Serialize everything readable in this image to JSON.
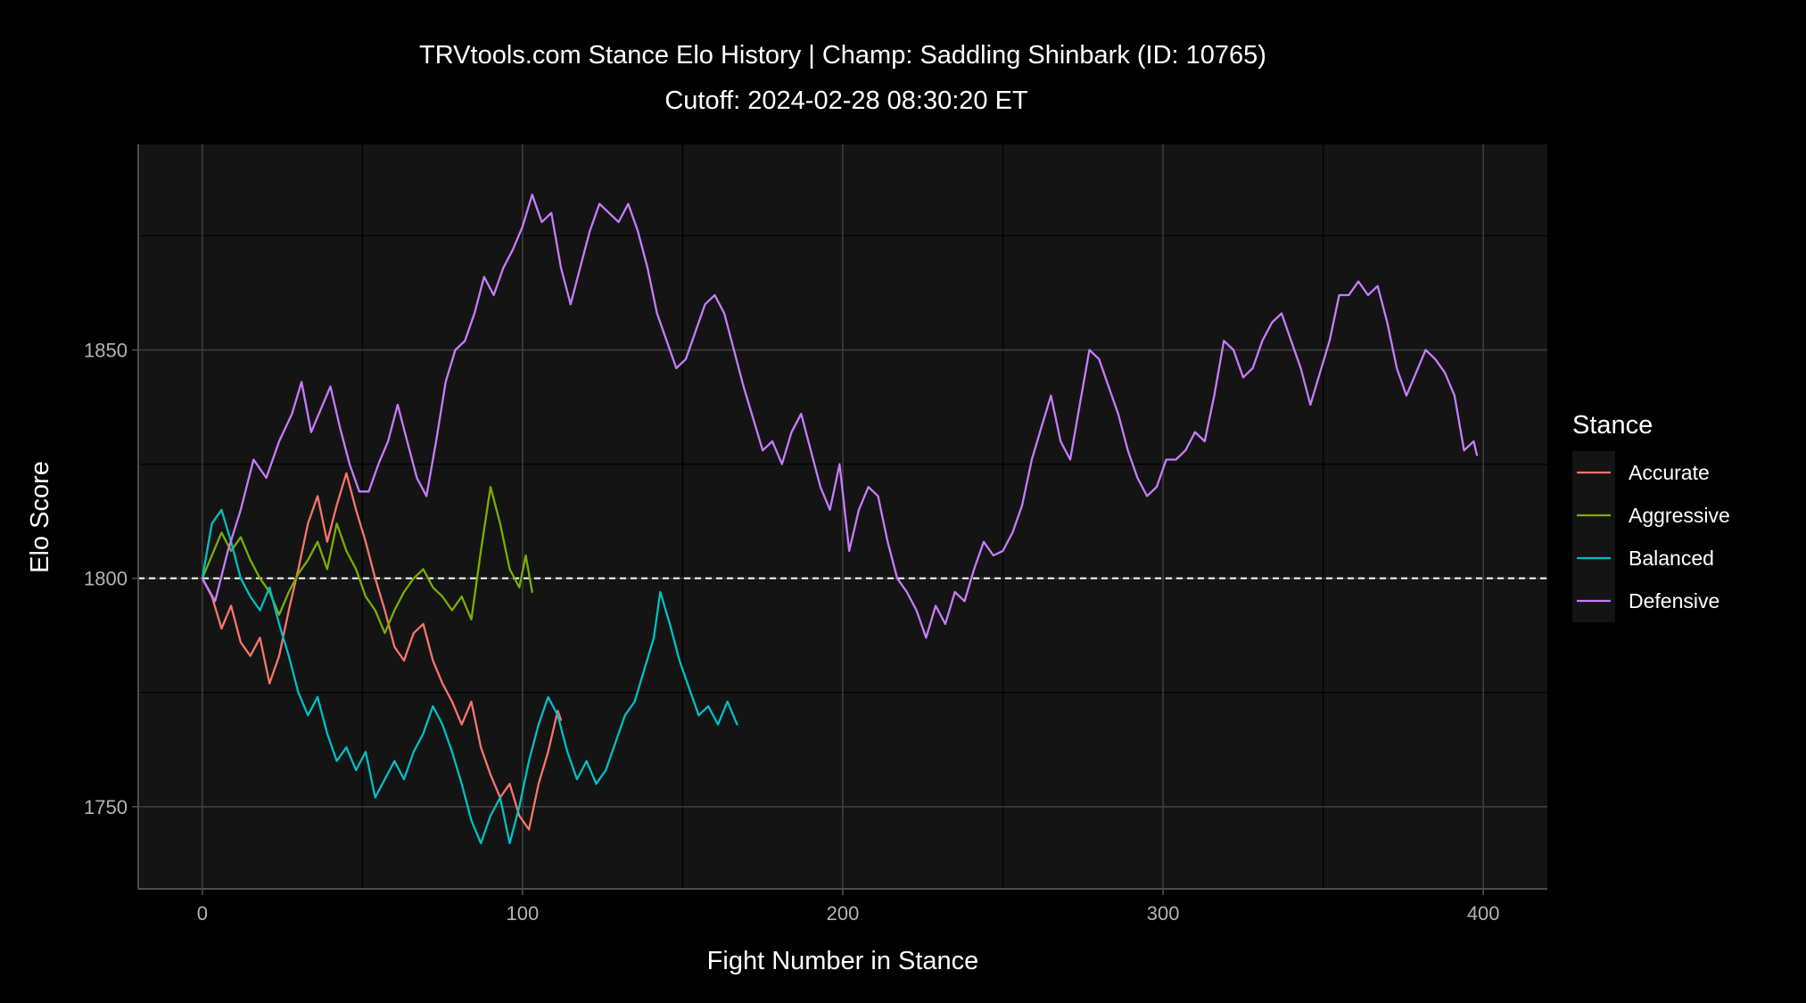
{
  "chart_data": {
    "type": "line",
    "title": "TRVtools.com Stance Elo History  |  Champ: Saddling Shinbark (ID: 10765)",
    "subtitle": "Cutoff: 2024-02-28 08:30:20 ET",
    "xlabel": "Fight Number in Stance",
    "ylabel": "Elo Score",
    "xlim": [
      -20,
      420
    ],
    "ylim": [
      1732,
      1895
    ],
    "x_ticks": [
      0,
      100,
      200,
      300,
      400
    ],
    "y_ticks": [
      1750,
      1800,
      1850
    ],
    "reference_line": {
      "y": 1800,
      "style": "dashed"
    },
    "grid": true,
    "legend": {
      "title": "Stance",
      "position": "right"
    },
    "series": [
      {
        "name": "Accurate",
        "color": "#F8766D",
        "points": [
          [
            0,
            1800
          ],
          [
            3,
            1796
          ],
          [
            6,
            1789
          ],
          [
            9,
            1794
          ],
          [
            12,
            1786
          ],
          [
            15,
            1783
          ],
          [
            18,
            1787
          ],
          [
            21,
            1777
          ],
          [
            24,
            1783
          ],
          [
            27,
            1793
          ],
          [
            30,
            1802
          ],
          [
            33,
            1812
          ],
          [
            36,
            1818
          ],
          [
            39,
            1808
          ],
          [
            42,
            1816
          ],
          [
            45,
            1823
          ],
          [
            48,
            1815
          ],
          [
            51,
            1808
          ],
          [
            54,
            1800
          ],
          [
            57,
            1793
          ],
          [
            60,
            1785
          ],
          [
            63,
            1782
          ],
          [
            66,
            1788
          ],
          [
            69,
            1790
          ],
          [
            72,
            1782
          ],
          [
            75,
            1777
          ],
          [
            78,
            1773
          ],
          [
            81,
            1768
          ],
          [
            84,
            1773
          ],
          [
            87,
            1763
          ],
          [
            90,
            1757
          ],
          [
            93,
            1752
          ],
          [
            96,
            1755
          ],
          [
            99,
            1748
          ],
          [
            102,
            1745
          ],
          [
            105,
            1755
          ],
          [
            108,
            1762
          ],
          [
            111,
            1771
          ],
          [
            112,
            1769
          ]
        ]
      },
      {
        "name": "Aggressive",
        "color": "#7CAE00",
        "points": [
          [
            0,
            1800
          ],
          [
            3,
            1805
          ],
          [
            6,
            1810
          ],
          [
            9,
            1806
          ],
          [
            12,
            1809
          ],
          [
            15,
            1804
          ],
          [
            18,
            1800
          ],
          [
            21,
            1797
          ],
          [
            24,
            1792
          ],
          [
            27,
            1797
          ],
          [
            30,
            1801
          ],
          [
            33,
            1804
          ],
          [
            36,
            1808
          ],
          [
            39,
            1802
          ],
          [
            42,
            1812
          ],
          [
            45,
            1806
          ],
          [
            48,
            1802
          ],
          [
            51,
            1796
          ],
          [
            54,
            1793
          ],
          [
            57,
            1788
          ],
          [
            60,
            1793
          ],
          [
            63,
            1797
          ],
          [
            66,
            1800
          ],
          [
            69,
            1802
          ],
          [
            72,
            1798
          ],
          [
            75,
            1796
          ],
          [
            78,
            1793
          ],
          [
            81,
            1796
          ],
          [
            84,
            1791
          ],
          [
            87,
            1806
          ],
          [
            90,
            1820
          ],
          [
            93,
            1812
          ],
          [
            96,
            1802
          ],
          [
            99,
            1798
          ],
          [
            101,
            1805
          ],
          [
            103,
            1797
          ]
        ]
      },
      {
        "name": "Balanced",
        "color": "#00BFC4",
        "points": [
          [
            0,
            1800
          ],
          [
            3,
            1812
          ],
          [
            6,
            1815
          ],
          [
            9,
            1808
          ],
          [
            12,
            1800
          ],
          [
            15,
            1796
          ],
          [
            18,
            1793
          ],
          [
            21,
            1798
          ],
          [
            24,
            1790
          ],
          [
            27,
            1783
          ],
          [
            30,
            1775
          ],
          [
            33,
            1770
          ],
          [
            36,
            1774
          ],
          [
            39,
            1766
          ],
          [
            42,
            1760
          ],
          [
            45,
            1763
          ],
          [
            48,
            1758
          ],
          [
            51,
            1762
          ],
          [
            54,
            1752
          ],
          [
            57,
            1756
          ],
          [
            60,
            1760
          ],
          [
            63,
            1756
          ],
          [
            66,
            1762
          ],
          [
            69,
            1766
          ],
          [
            72,
            1772
          ],
          [
            75,
            1768
          ],
          [
            78,
            1762
          ],
          [
            81,
            1755
          ],
          [
            84,
            1747
          ],
          [
            87,
            1742
          ],
          [
            90,
            1748
          ],
          [
            93,
            1752
          ],
          [
            96,
            1742
          ],
          [
            99,
            1750
          ],
          [
            102,
            1760
          ],
          [
            105,
            1768
          ],
          [
            108,
            1774
          ],
          [
            111,
            1770
          ],
          [
            114,
            1762
          ],
          [
            117,
            1756
          ],
          [
            120,
            1760
          ],
          [
            123,
            1755
          ],
          [
            126,
            1758
          ],
          [
            129,
            1764
          ],
          [
            132,
            1770
          ],
          [
            135,
            1773
          ],
          [
            138,
            1780
          ],
          [
            141,
            1787
          ],
          [
            143,
            1797
          ],
          [
            146,
            1790
          ],
          [
            149,
            1782
          ],
          [
            152,
            1776
          ],
          [
            155,
            1770
          ],
          [
            158,
            1772
          ],
          [
            161,
            1768
          ],
          [
            164,
            1773
          ],
          [
            167,
            1768
          ]
        ]
      },
      {
        "name": "Defensive",
        "color": "#C77CFF",
        "points": [
          [
            0,
            1800
          ],
          [
            4,
            1795
          ],
          [
            8,
            1806
          ],
          [
            12,
            1815
          ],
          [
            16,
            1826
          ],
          [
            20,
            1822
          ],
          [
            24,
            1830
          ],
          [
            28,
            1836
          ],
          [
            31,
            1843
          ],
          [
            34,
            1832
          ],
          [
            37,
            1837
          ],
          [
            40,
            1842
          ],
          [
            43,
            1833
          ],
          [
            46,
            1825
          ],
          [
            49,
            1819
          ],
          [
            52,
            1819
          ],
          [
            55,
            1825
          ],
          [
            58,
            1830
          ],
          [
            61,
            1838
          ],
          [
            64,
            1830
          ],
          [
            67,
            1822
          ],
          [
            70,
            1818
          ],
          [
            73,
            1830
          ],
          [
            76,
            1843
          ],
          [
            79,
            1850
          ],
          [
            82,
            1852
          ],
          [
            85,
            1858
          ],
          [
            88,
            1866
          ],
          [
            91,
            1862
          ],
          [
            94,
            1868
          ],
          [
            97,
            1872
          ],
          [
            100,
            1877
          ],
          [
            103,
            1884
          ],
          [
            106,
            1878
          ],
          [
            109,
            1880
          ],
          [
            112,
            1868
          ],
          [
            115,
            1860
          ],
          [
            118,
            1868
          ],
          [
            121,
            1876
          ],
          [
            124,
            1882
          ],
          [
            127,
            1880
          ],
          [
            130,
            1878
          ],
          [
            133,
            1882
          ],
          [
            136,
            1876
          ],
          [
            139,
            1868
          ],
          [
            142,
            1858
          ],
          [
            145,
            1852
          ],
          [
            148,
            1846
          ],
          [
            151,
            1848
          ],
          [
            154,
            1854
          ],
          [
            157,
            1860
          ],
          [
            160,
            1862
          ],
          [
            163,
            1858
          ],
          [
            166,
            1850
          ],
          [
            169,
            1842
          ],
          [
            172,
            1835
          ],
          [
            175,
            1828
          ],
          [
            178,
            1830
          ],
          [
            181,
            1825
          ],
          [
            184,
            1832
          ],
          [
            187,
            1836
          ],
          [
            190,
            1828
          ],
          [
            193,
            1820
          ],
          [
            196,
            1815
          ],
          [
            199,
            1825
          ],
          [
            202,
            1806
          ],
          [
            205,
            1815
          ],
          [
            208,
            1820
          ],
          [
            211,
            1818
          ],
          [
            214,
            1808
          ],
          [
            217,
            1800
          ],
          [
            220,
            1797
          ],
          [
            223,
            1793
          ],
          [
            226,
            1787
          ],
          [
            229,
            1794
          ],
          [
            232,
            1790
          ],
          [
            235,
            1797
          ],
          [
            238,
            1795
          ],
          [
            241,
            1802
          ],
          [
            244,
            1808
          ],
          [
            247,
            1805
          ],
          [
            250,
            1806
          ],
          [
            253,
            1810
          ],
          [
            256,
            1816
          ],
          [
            259,
            1826
          ],
          [
            262,
            1833
          ],
          [
            265,
            1840
          ],
          [
            268,
            1830
          ],
          [
            271,
            1826
          ],
          [
            274,
            1838
          ],
          [
            277,
            1850
          ],
          [
            280,
            1848
          ],
          [
            283,
            1842
          ],
          [
            286,
            1836
          ],
          [
            289,
            1828
          ],
          [
            292,
            1822
          ],
          [
            295,
            1818
          ],
          [
            298,
            1820
          ],
          [
            301,
            1826
          ],
          [
            304,
            1826
          ],
          [
            307,
            1828
          ],
          [
            310,
            1832
          ],
          [
            313,
            1830
          ],
          [
            316,
            1840
          ],
          [
            319,
            1852
          ],
          [
            322,
            1850
          ],
          [
            325,
            1844
          ],
          [
            328,
            1846
          ],
          [
            331,
            1852
          ],
          [
            334,
            1856
          ],
          [
            337,
            1858
          ],
          [
            340,
            1852
          ],
          [
            343,
            1846
          ],
          [
            346,
            1838
          ],
          [
            349,
            1845
          ],
          [
            352,
            1852
          ],
          [
            355,
            1862
          ],
          [
            358,
            1862
          ],
          [
            361,
            1865
          ],
          [
            364,
            1862
          ],
          [
            367,
            1864
          ],
          [
            370,
            1856
          ],
          [
            373,
            1846
          ],
          [
            376,
            1840
          ],
          [
            379,
            1845
          ],
          [
            382,
            1850
          ],
          [
            385,
            1848
          ],
          [
            388,
            1845
          ],
          [
            391,
            1840
          ],
          [
            394,
            1828
          ],
          [
            397,
            1830
          ],
          [
            398,
            1827
          ]
        ]
      }
    ]
  }
}
